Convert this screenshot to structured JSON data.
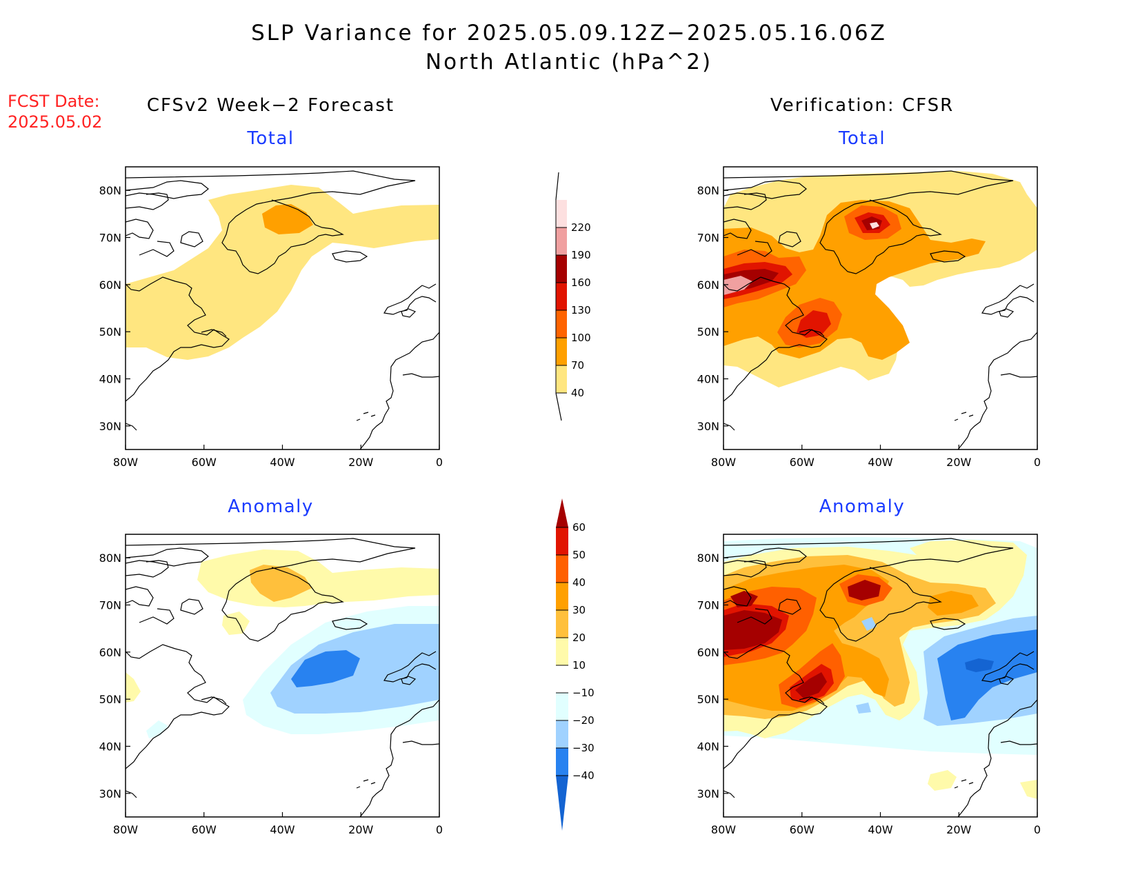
{
  "title_line1": "SLP Variance for 2025.05.09.12Z−2025.05.16.06Z",
  "title_line2": "North Atlantic (hPa^2)",
  "fcst_date_label": "FCST Date:",
  "fcst_date_value": "2025.05.02",
  "left_column_header": "CFSv2 Week−2 Forecast",
  "right_column_header": "Verification: CFSR",
  "panels": {
    "forecast_total": {
      "subtitle": "Total"
    },
    "verification_total": {
      "subtitle": "Total"
    },
    "forecast_anomaly": {
      "subtitle": "Anomaly"
    },
    "verification_anomaly": {
      "subtitle": "Anomaly"
    }
  },
  "map_axes": {
    "lat_labels": [
      "80N",
      "70N",
      "60N",
      "50N",
      "40N",
      "30N"
    ],
    "lat_values": [
      80,
      70,
      60,
      50,
      40,
      30
    ],
    "lon_labels": [
      "80W",
      "60W",
      "40W",
      "20W",
      "0"
    ],
    "lon_values": [
      -80,
      -60,
      -40,
      -20,
      0
    ],
    "lat_range": [
      25,
      85
    ],
    "lon_range": [
      -80,
      0
    ]
  },
  "total_colorbar": {
    "levels": [
      "40",
      "70",
      "100",
      "130",
      "160",
      "190",
      "220"
    ],
    "colors": [
      "#ffe680",
      "#ffa000",
      "#ff6400",
      "#e11400",
      "#a50000",
      "#f0a0a0",
      "#fde0e0"
    ]
  },
  "anomaly_colorbar": {
    "levels": [
      "−40",
      "−30",
      "−20",
      "−10",
      "10",
      "20",
      "30",
      "40",
      "50",
      "60"
    ],
    "colors": [
      "#1464d2",
      "#2882f0",
      "#a0d2ff",
      "#e1ffff",
      "#ffffff",
      "#fffaaa",
      "#ffc03c",
      "#ffa000",
      "#ff6000",
      "#e11400",
      "#a50000"
    ]
  },
  "colors": {
    "title": "#000000",
    "fcst_date": "#ff2222",
    "subtitle": "#1a3bff"
  }
}
